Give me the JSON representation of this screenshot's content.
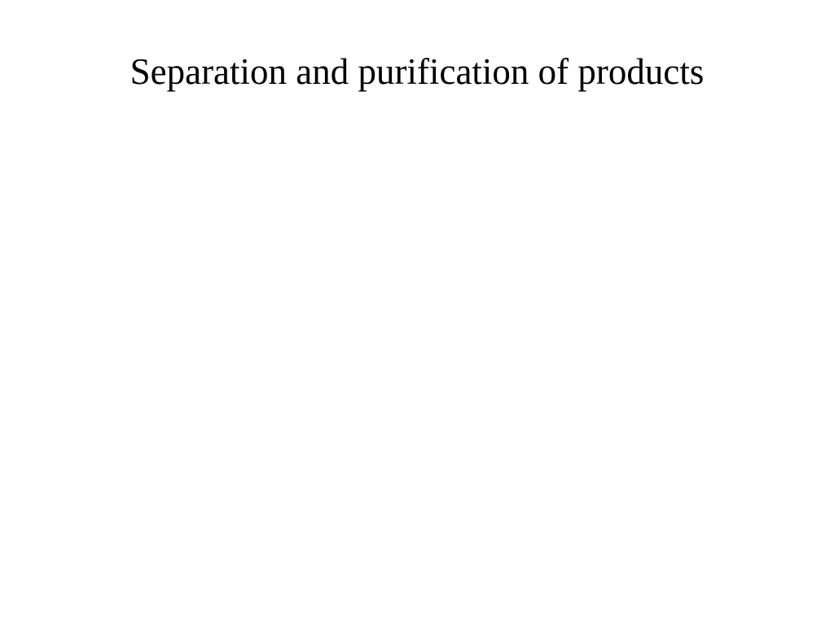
{
  "slide": {
    "title": "Separation and purification of products",
    "title_fontsize": 45,
    "title_color": "#000000",
    "title_font_family": "Times New Roman",
    "title_font_weight": "normal",
    "background_color": "#ffffff",
    "title_alignment": "center",
    "title_top_padding": 62
  }
}
